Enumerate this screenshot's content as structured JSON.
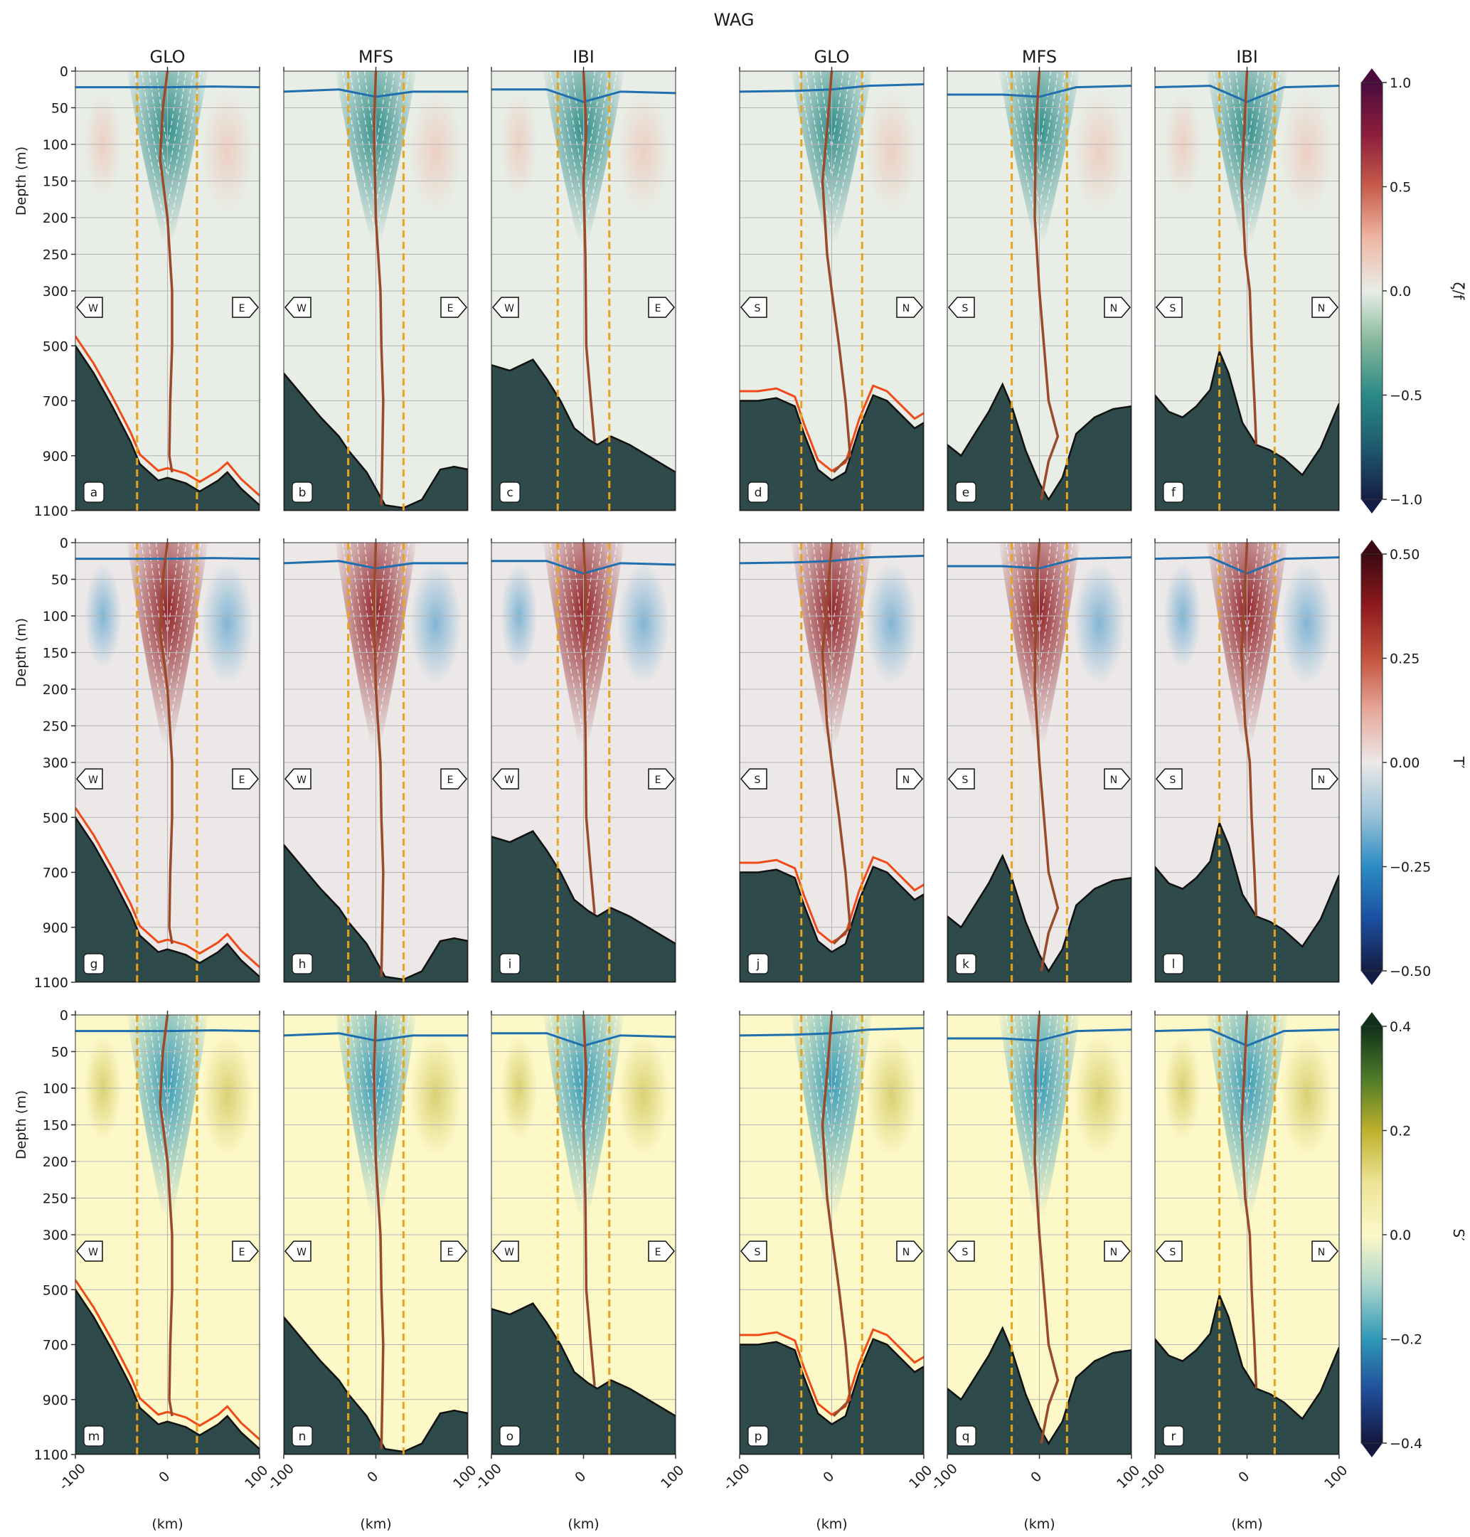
{
  "figure": {
    "title": "WAG",
    "column_titles": [
      "GLO",
      "MFS",
      "IBI",
      "GLO",
      "MFS",
      "IBI"
    ],
    "ylabel": "Depth (m)",
    "xlabel": "(km)",
    "xticks": [
      "-100",
      "0",
      "100"
    ],
    "yticks": [
      "0",
      "50",
      "100",
      "150",
      "200",
      "250",
      "300",
      "500",
      "700",
      "900",
      "1100"
    ],
    "direction_labels": [
      [
        "W",
        "E"
      ],
      [
        "W",
        "E"
      ],
      [
        "W",
        "E"
      ],
      [
        "S",
        "N"
      ],
      [
        "S",
        "N"
      ],
      [
        "S",
        "N"
      ]
    ],
    "panel_letters": [
      "a",
      "b",
      "c",
      "d",
      "e",
      "f",
      "g",
      "h",
      "i",
      "j",
      "k",
      "l",
      "m",
      "n",
      "o",
      "p",
      "q",
      "r"
    ]
  },
  "chart_data": [
    {
      "type": "heatmap",
      "variable": "ζ/f",
      "panels": [
        "a",
        "b",
        "c",
        "d",
        "e",
        "f"
      ],
      "colorbar": {
        "label": "ζ/f",
        "ticks": [
          "1.0",
          "0.5",
          "0.0",
          "−0.5",
          "−1.0"
        ],
        "range": [
          -1.0,
          1.0
        ],
        "colors": [
          "#151d44",
          "#1e5a6e",
          "#2a8a86",
          "#82b69a",
          "#e8ede6",
          "#efb7a5",
          "#c65d4b",
          "#8c1e3c",
          "#4a0c3e"
        ]
      },
      "xlim": [
        -100,
        100
      ],
      "ylim_depth_m": [
        0,
        1100
      ]
    },
    {
      "type": "heatmap",
      "variable": "T′",
      "panels": [
        "g",
        "h",
        "i",
        "j",
        "k",
        "l"
      ],
      "colorbar": {
        "label": "T′",
        "ticks": [
          "0.50",
          "0.25",
          "0.00",
          "−0.25",
          "−0.50"
        ],
        "range": [
          -0.5,
          0.5
        ],
        "colors": [
          "#151d44",
          "#1a4fa0",
          "#2b8cc4",
          "#9cc3d8",
          "#ece8e8",
          "#e6a89a",
          "#c4533d",
          "#8e1a1e",
          "#3c0a12"
        ]
      },
      "xlim": [
        -100,
        100
      ],
      "ylim_depth_m": [
        0,
        1100
      ]
    },
    {
      "type": "heatmap",
      "variable": "S′",
      "panels": [
        "m",
        "n",
        "o",
        "p",
        "q",
        "r"
      ],
      "colorbar": {
        "label": "S′",
        "ticks": [
          "0.4",
          "0.2",
          "0.0",
          "−0.2",
          "−0.4"
        ],
        "range": [
          -0.4,
          0.4
        ],
        "colors": [
          "#15183e",
          "#1f4d9a",
          "#2f98b7",
          "#a8d4cc",
          "#fdf8c8",
          "#ede496",
          "#bdb12c",
          "#4e7a28",
          "#10301a"
        ]
      },
      "xlim": [
        -100,
        100
      ],
      "ylim_depth_m": [
        0,
        1100
      ]
    }
  ],
  "colors": {
    "bathymetry": "#2f4a4a",
    "mixed_layer_line": "#1f6fae",
    "eddy_axis_line": "#9a4a2a",
    "bottom_contour_line": "#f04a18",
    "eddy_edge_dashes": "#e8a31c",
    "grid": "#b3b3b3"
  }
}
